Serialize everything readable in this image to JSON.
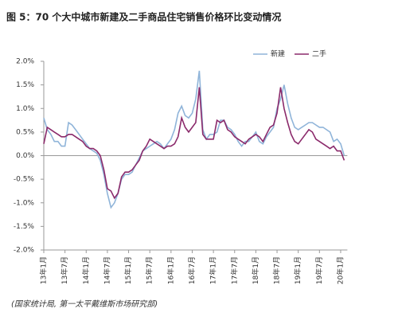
{
  "chart_data": {
    "type": "line",
    "title": "图 5：70 个大中城市新建及二手商品住宅销售价格环比变动情况",
    "source": "(国家统计局, 第一太平戴维斯市场研究部)",
    "categories": [
      "13年1月",
      null,
      null,
      null,
      null,
      null,
      "13年7月",
      null,
      null,
      null,
      null,
      null,
      "14年1月",
      null,
      null,
      null,
      null,
      null,
      "14年7月",
      null,
      null,
      null,
      null,
      null,
      "15年1月",
      null,
      null,
      null,
      null,
      null,
      "15年7月",
      null,
      null,
      null,
      null,
      null,
      "16年1月",
      null,
      null,
      null,
      null,
      null,
      "16年7月",
      null,
      null,
      null,
      null,
      null,
      "17年1月",
      null,
      null,
      null,
      null,
      null,
      "17年7月",
      null,
      null,
      null,
      null,
      null,
      "18年1月",
      null,
      null,
      null,
      null,
      null,
      "18年7月",
      null,
      null,
      null,
      null,
      null,
      "19年1月",
      null,
      null,
      null,
      null,
      null,
      "19年7月",
      null,
      null,
      null,
      null,
      null,
      "20年1月",
      null
    ],
    "series": [
      {
        "name": "新建",
        "color": "#8fb4d9",
        "values": [
          0.8,
          0.55,
          0.45,
          0.3,
          0.3,
          0.2,
          0.2,
          0.7,
          0.65,
          0.55,
          0.45,
          0.35,
          0.25,
          0.15,
          0.1,
          0.05,
          -0.1,
          -0.4,
          -0.8,
          -1.1,
          -1.0,
          -0.8,
          -0.5,
          -0.4,
          -0.4,
          -0.35,
          -0.2,
          -0.05,
          0.1,
          0.15,
          0.2,
          0.25,
          0.3,
          0.25,
          0.15,
          0.25,
          0.35,
          0.55,
          0.9,
          1.05,
          0.85,
          0.8,
          0.9,
          1.2,
          1.8,
          0.55,
          0.35,
          0.45,
          0.45,
          0.5,
          0.75,
          0.75,
          0.6,
          0.55,
          0.45,
          0.3,
          0.2,
          0.3,
          0.3,
          0.4,
          0.5,
          0.3,
          0.25,
          0.4,
          0.5,
          0.6,
          1.0,
          1.2,
          1.5,
          1.1,
          0.8,
          0.6,
          0.55,
          0.6,
          0.65,
          0.7,
          0.7,
          0.65,
          0.6,
          0.6,
          0.55,
          0.5,
          0.3,
          0.35,
          0.25,
          0.0
        ]
      },
      {
        "name": "二手",
        "color": "#8b2a6b",
        "values": [
          0.25,
          0.6,
          0.55,
          0.5,
          0.45,
          0.4,
          0.4,
          0.45,
          0.45,
          0.4,
          0.35,
          0.3,
          0.2,
          0.15,
          0.15,
          0.1,
          0.0,
          -0.3,
          -0.7,
          -0.75,
          -0.9,
          -0.8,
          -0.45,
          -0.35,
          -0.35,
          -0.3,
          -0.2,
          -0.1,
          0.1,
          0.2,
          0.35,
          0.3,
          0.25,
          0.2,
          0.15,
          0.2,
          0.2,
          0.25,
          0.4,
          0.8,
          0.6,
          0.5,
          0.6,
          0.7,
          1.45,
          0.45,
          0.35,
          0.35,
          0.35,
          0.75,
          0.7,
          0.75,
          0.55,
          0.5,
          0.4,
          0.35,
          0.3,
          0.25,
          0.35,
          0.4,
          0.45,
          0.4,
          0.3,
          0.45,
          0.6,
          0.65,
          0.9,
          1.45,
          1.0,
          0.7,
          0.45,
          0.3,
          0.25,
          0.35,
          0.45,
          0.55,
          0.5,
          0.35,
          0.3,
          0.25,
          0.2,
          0.15,
          0.2,
          0.1,
          0.1,
          -0.1
        ]
      }
    ],
    "ylim": [
      -2.0,
      2.0
    ],
    "yticks": [
      {
        "value": -2.0,
        "label": "-2.0%"
      },
      {
        "value": -1.5,
        "label": "-1.5%"
      },
      {
        "value": -1.0,
        "label": "-1.0%"
      },
      {
        "value": -0.5,
        "label": "-0.5%"
      },
      {
        "value": 0.0,
        "label": "0.0%"
      },
      {
        "value": 0.5,
        "label": "0.5%"
      },
      {
        "value": 1.0,
        "label": "1.0%"
      },
      {
        "value": 1.5,
        "label": "1.5%"
      },
      {
        "value": 2.0,
        "label": "2.0%"
      }
    ],
    "legend": "top-right"
  }
}
